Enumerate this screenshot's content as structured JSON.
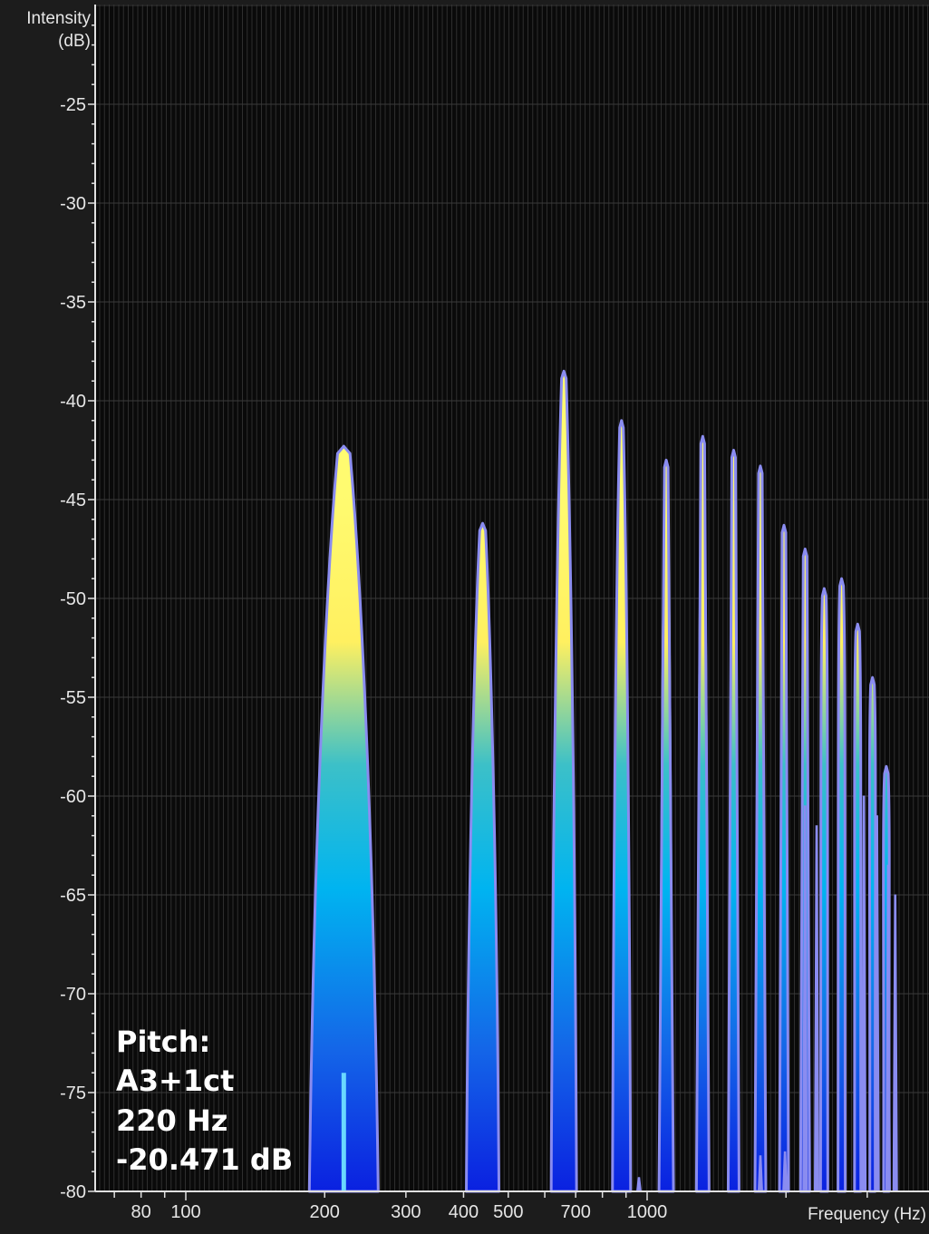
{
  "chart_data": {
    "type": "area",
    "title": "",
    "xlabel": "Frequency (Hz)",
    "ylabel_line1": "Intensity",
    "ylabel_line2": "(dB)",
    "x_scale": "log",
    "xlim": [
      70,
      3500
    ],
    "ylim": [
      -80,
      -20
    ],
    "x_tick_labels": [
      {
        "value": 80,
        "label": "80"
      },
      {
        "value": 100,
        "label": "100"
      },
      {
        "value": 200,
        "label": "200"
      },
      {
        "value": 300,
        "label": "300"
      },
      {
        "value": 400,
        "label": "400"
      },
      {
        "value": 500,
        "label": "500"
      },
      {
        "value": 700,
        "label": "700"
      },
      {
        "value": 1000,
        "label": "1000"
      }
    ],
    "y_tick_labels": [
      {
        "value": -25,
        "label": "-25"
      },
      {
        "value": -30,
        "label": "-30"
      },
      {
        "value": -35,
        "label": "-35"
      },
      {
        "value": -40,
        "label": "-40"
      },
      {
        "value": -45,
        "label": "-45"
      },
      {
        "value": -50,
        "label": "-50"
      },
      {
        "value": -55,
        "label": "-55"
      },
      {
        "value": -60,
        "label": "-60"
      },
      {
        "value": -65,
        "label": "-65"
      },
      {
        "value": -70,
        "label": "-70"
      },
      {
        "value": -75,
        "label": "-75"
      },
      {
        "value": -80,
        "label": "-80"
      }
    ],
    "grid": true,
    "peaks": [
      {
        "freq": 220,
        "db": -42.3
      },
      {
        "freq": 440,
        "db": -46.2
      },
      {
        "freq": 660,
        "db": -38.5
      },
      {
        "freq": 880,
        "db": -41.0
      },
      {
        "freq": 1100,
        "db": -43.0
      },
      {
        "freq": 1320,
        "db": -41.8
      },
      {
        "freq": 1540,
        "db": -42.5
      },
      {
        "freq": 1760,
        "db": -43.3
      },
      {
        "freq": 1980,
        "db": -46.3
      },
      {
        "freq": 2200,
        "db": -47.5
      },
      {
        "freq": 2420,
        "db": -49.5
      },
      {
        "freq": 2640,
        "db": -49.0
      },
      {
        "freq": 2860,
        "db": -51.3
      },
      {
        "freq": 3080,
        "db": -54.0
      },
      {
        "freq": 3300,
        "db": -58.5
      }
    ],
    "minor_peaks": [
      {
        "freq": 960,
        "db": -79.3
      },
      {
        "freq": 1760,
        "db": -78.2
      },
      {
        "freq": 1990,
        "db": -78.0
      },
      {
        "freq": 2200,
        "db": -60.5
      },
      {
        "freq": 2330,
        "db": -61.5
      },
      {
        "freq": 2950,
        "db": -60.0
      },
      {
        "freq": 3150,
        "db": -61.0
      },
      {
        "freq": 3330,
        "db": -63.5
      },
      {
        "freq": 3450,
        "db": -65.0
      }
    ],
    "cursor": {
      "freq": 220,
      "db": -74.0
    },
    "colors": {
      "background": "#0a0a0a",
      "grid": "#2e2e2e",
      "outline": "#8a8cf0",
      "gradient_high": "#fffb70",
      "gradient_mid": "#00b4f0",
      "gradient_low": "#0a1ee0",
      "cursor": "#6ad8ff"
    }
  },
  "readout": {
    "line1": "Pitch:",
    "line2": "A3+1ct",
    "line3": "220 Hz",
    "line4": "-20.471 dB"
  }
}
